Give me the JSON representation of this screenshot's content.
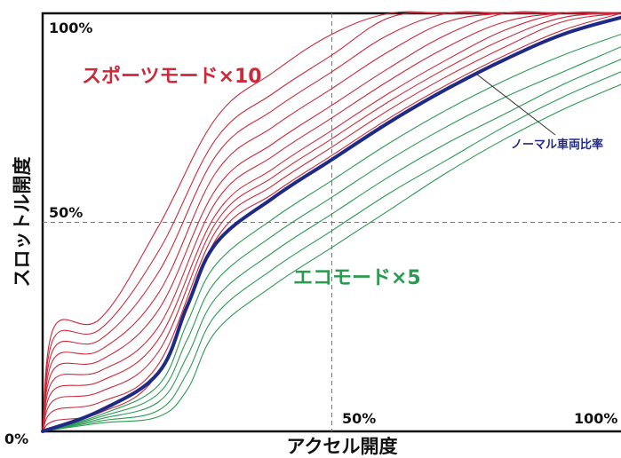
{
  "chart_data": {
    "type": "line",
    "xlabel": "アクセル開度",
    "ylabel": "スロットル開度",
    "xlim": [
      0,
      100
    ],
    "ylim": [
      0,
      100
    ],
    "tick_labels": {
      "origin": "0%",
      "x_mid": "50%",
      "x_max": "100%",
      "y_mid": "50%",
      "y_max": "100%"
    },
    "reference_lines": {
      "x": 50,
      "y": 50,
      "style": "dashed"
    },
    "grid": false,
    "annotations": {
      "sport": "スポーツモード×10",
      "eco": "エコモード×5",
      "normal": "ノーマル車両比率"
    },
    "colors": {
      "sport": "#cc2a3a",
      "normal": "#1f2a86",
      "eco": "#2a9a4e",
      "frame": "#111111",
      "ref_line": "#777777"
    },
    "series": [
      {
        "name": "ノーマル車両比率",
        "group": "normal",
        "x": [
          0,
          10,
          20,
          25,
          30,
          40,
          50,
          60,
          70,
          80,
          90,
          100
        ],
        "y": [
          0,
          5,
          14,
          30,
          45,
          56,
          65,
          74,
          82,
          89,
          95,
          99
        ]
      },
      {
        "group": "sport",
        "x": [
          0,
          2,
          10,
          20,
          30,
          40,
          50,
          60,
          70,
          80,
          90,
          100
        ],
        "y": [
          0,
          2.5,
          4.5,
          14,
          46,
          57,
          66,
          75,
          83,
          90,
          96,
          100
        ]
      },
      {
        "group": "sport",
        "x": [
          0,
          2,
          10,
          20,
          30,
          40,
          50,
          60,
          70,
          80,
          90,
          100
        ],
        "y": [
          0,
          5,
          7,
          16,
          48,
          59,
          68,
          77,
          85,
          92,
          98,
          100
        ]
      },
      {
        "group": "sport",
        "x": [
          0,
          2,
          10,
          20,
          30,
          40,
          50,
          60,
          70,
          80,
          90,
          100
        ],
        "y": [
          0,
          7.5,
          9.5,
          19,
          50,
          61,
          70,
          79,
          87,
          94,
          99,
          100
        ]
      },
      {
        "group": "sport",
        "x": [
          0,
          2,
          10,
          20,
          30,
          40,
          50,
          60,
          70,
          80,
          90,
          100
        ],
        "y": [
          0,
          10,
          12,
          22,
          52,
          63,
          72,
          81,
          89,
          96,
          100,
          100
        ]
      },
      {
        "group": "sport",
        "x": [
          0,
          2,
          10,
          20,
          30,
          40,
          50,
          60,
          70,
          80,
          90,
          100
        ],
        "y": [
          0,
          12.5,
          14.5,
          25,
          55,
          66,
          75,
          84,
          92,
          98,
          100,
          100
        ]
      },
      {
        "group": "sport",
        "x": [
          0,
          2,
          10,
          20,
          30,
          40,
          50,
          60,
          70,
          80,
          90,
          100
        ],
        "y": [
          0,
          15,
          17,
          29,
          58,
          69,
          78,
          87,
          95,
          100,
          100,
          100
        ]
      },
      {
        "group": "sport",
        "x": [
          0,
          2,
          10,
          20,
          30,
          40,
          50,
          60,
          70,
          80,
          90,
          100
        ],
        "y": [
          0,
          17.5,
          19.5,
          33,
          62,
          73,
          82,
          91,
          98,
          100,
          100,
          100
        ]
      },
      {
        "group": "sport",
        "x": [
          0,
          2,
          10,
          20,
          30,
          40,
          50,
          60,
          70,
          80,
          90,
          100
        ],
        "y": [
          0,
          20,
          22,
          38,
          66,
          77,
          86,
          95,
          100,
          100,
          100,
          100
        ]
      },
      {
        "group": "sport",
        "x": [
          0,
          2,
          10,
          20,
          30,
          40,
          50,
          60,
          70,
          80,
          90,
          100
        ],
        "y": [
          0,
          22.5,
          24.5,
          43,
          70,
          81,
          90,
          99,
          100,
          100,
          100,
          100
        ]
      },
      {
        "group": "sport",
        "x": [
          0,
          2,
          10,
          20,
          30,
          40,
          50,
          60,
          70,
          80,
          90,
          100
        ],
        "y": [
          0,
          25,
          27,
          49,
          75,
          86,
          95,
          100,
          100,
          100,
          100,
          100
        ]
      },
      {
        "group": "eco",
        "x": [
          0,
          10,
          20,
          25,
          30,
          40,
          50,
          60,
          70,
          80,
          90,
          100
        ],
        "y": [
          0,
          4,
          11,
          26,
          40,
          51,
          60,
          69,
          77,
          84,
          90,
          95
        ]
      },
      {
        "group": "eco",
        "x": [
          0,
          10,
          20,
          25,
          30,
          40,
          50,
          60,
          70,
          80,
          90,
          100
        ],
        "y": [
          0,
          3.5,
          9,
          22,
          36,
          47,
          56,
          65,
          73,
          80,
          86,
          92
        ]
      },
      {
        "group": "eco",
        "x": [
          0,
          10,
          20,
          25,
          30,
          40,
          50,
          60,
          70,
          80,
          90,
          100
        ],
        "y": [
          0,
          3,
          7,
          18,
          32,
          43,
          52,
          61,
          69,
          76,
          83,
          89
        ]
      },
      {
        "group": "eco",
        "x": [
          0,
          10,
          20,
          25,
          30,
          40,
          50,
          60,
          70,
          80,
          90,
          100
        ],
        "y": [
          0,
          2.5,
          5,
          14,
          28,
          39,
          48,
          57,
          65,
          73,
          80,
          86
        ]
      },
      {
        "group": "eco",
        "x": [
          0,
          10,
          20,
          25,
          30,
          40,
          50,
          60,
          70,
          80,
          90,
          100
        ],
        "y": [
          0,
          2,
          3.5,
          10,
          24,
          35,
          44,
          53,
          62,
          70,
          77,
          83
        ]
      }
    ]
  }
}
